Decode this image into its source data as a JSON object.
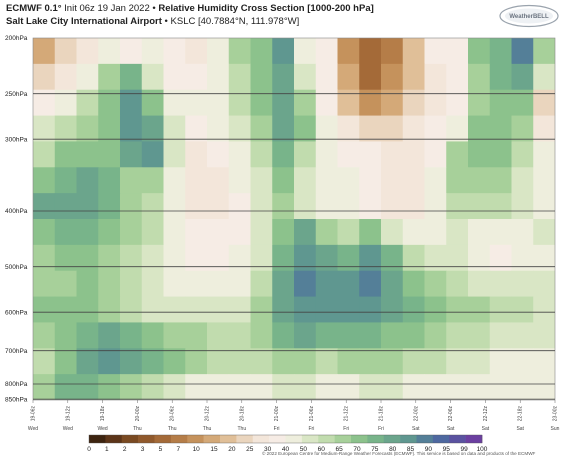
{
  "header": {
    "model": "ECMWF 0.1°",
    "init": "Init 06z 19 Jan 2022",
    "separator": "•",
    "product": "Relative Humidity Cross Section [1000-200 hPa]",
    "location": "Salt Lake City International Airport",
    "station": "KSLC [40.7884°N, 111.978°W]"
  },
  "logo": {
    "text": "WeatherBELL"
  },
  "colors": {
    "dry_dark": "#7a4a22",
    "mid": "#f5ebe2",
    "moist": "#6fa58a",
    "saturated": "#6b3fa0"
  },
  "chart_data": {
    "type": "heatmap",
    "title": "Relative Humidity Cross Section [1000-200 hPa]",
    "y_axis": {
      "levels_hPa": [
        200,
        250,
        300,
        400,
        500,
        600,
        700,
        800,
        850
      ],
      "tick_labels": [
        "200hPa",
        "250hPa",
        "300hPa",
        "400hPa",
        "500hPa",
        "600hPa",
        "700hPa",
        "800hPa",
        "850hPa"
      ],
      "scale": "log-pressure"
    },
    "x_axis": {
      "times": [
        "19-06z",
        "19-12z",
        "19-18z",
        "20-00z",
        "20-06z",
        "20-12z",
        "20-18z",
        "21-00z",
        "21-06z",
        "21-12z",
        "21-18z",
        "22-00z",
        "22-06z",
        "22-12z",
        "22-18z",
        "23-00z"
      ],
      "day_labels": [
        "Wed",
        "Wed",
        "Wed",
        "Thu",
        "Thu",
        "Thu",
        "Thu",
        "Fri",
        "Fri",
        "Fri",
        "Fri",
        "Sat",
        "Sat",
        "Sat",
        "Sat",
        "Sun"
      ]
    },
    "colorbar": {
      "ticks": [
        0,
        1,
        2,
        3,
        5,
        7,
        10,
        15,
        20,
        25,
        30,
        40,
        50,
        60,
        65,
        70,
        75,
        80,
        85,
        90,
        95,
        99,
        100
      ],
      "colors": [
        "#3d2410",
        "#5c3519",
        "#7a4a22",
        "#90592c",
        "#a46a38",
        "#b57d48",
        "#c5925c",
        "#d4a978",
        "#e0bf98",
        "#ead5be",
        "#f3e6da",
        "#f6ece5",
        "#eeeedd",
        "#d9e6c5",
        "#c1dcae",
        "#a7d09a",
        "#8cc28c",
        "#78b48a",
        "#6ba58c",
        "#5f9790",
        "#547f98",
        "#4e68a0",
        "#5a52a0",
        "#6b3fa0"
      ]
    },
    "rh_grid": [
      [
        15,
        25,
        35,
        55,
        45,
        55,
        40,
        30,
        50,
        70,
        75,
        90,
        55,
        45,
        10,
        5,
        8,
        20,
        40,
        45,
        75,
        80,
        95,
        70
      ],
      [
        25,
        35,
        50,
        70,
        80,
        60,
        45,
        40,
        55,
        65,
        75,
        85,
        60,
        40,
        15,
        5,
        10,
        20,
        30,
        40,
        70,
        80,
        85,
        60
      ],
      [
        45,
        55,
        65,
        75,
        92,
        75,
        55,
        50,
        55,
        65,
        75,
        85,
        70,
        45,
        20,
        10,
        15,
        25,
        35,
        45,
        70,
        78,
        75,
        25
      ],
      [
        60,
        65,
        70,
        75,
        90,
        85,
        60,
        45,
        50,
        60,
        70,
        85,
        75,
        50,
        35,
        25,
        25,
        30,
        40,
        55,
        75,
        75,
        70,
        35
      ],
      [
        65,
        75,
        75,
        75,
        85,
        90,
        60,
        30,
        40,
        55,
        65,
        80,
        65,
        50,
        45,
        40,
        30,
        30,
        45,
        70,
        75,
        75,
        65,
        50
      ],
      [
        75,
        80,
        85,
        80,
        70,
        70,
        55,
        30,
        35,
        50,
        60,
        75,
        60,
        50,
        50,
        45,
        30,
        30,
        50,
        70,
        70,
        70,
        60,
        50
      ],
      [
        85,
        85,
        85,
        80,
        70,
        65,
        55,
        35,
        35,
        45,
        60,
        70,
        60,
        50,
        50,
        45,
        35,
        30,
        50,
        65,
        65,
        65,
        60,
        55
      ],
      [
        75,
        80,
        80,
        75,
        70,
        65,
        55,
        40,
        40,
        45,
        60,
        75,
        85,
        70,
        65,
        75,
        60,
        50,
        55,
        60,
        55,
        55,
        55,
        60
      ],
      [
        70,
        75,
        75,
        70,
        65,
        60,
        50,
        45,
        45,
        50,
        60,
        80,
        90,
        85,
        80,
        90,
        80,
        65,
        60,
        60,
        55,
        40,
        50,
        55
      ],
      [
        70,
        70,
        75,
        70,
        65,
        60,
        55,
        50,
        50,
        55,
        65,
        85,
        95,
        92,
        90,
        95,
        85,
        75,
        70,
        65,
        60,
        60,
        60,
        60
      ],
      [
        75,
        75,
        75,
        70,
        65,
        60,
        60,
        60,
        60,
        60,
        70,
        85,
        90,
        92,
        92,
        90,
        85,
        80,
        75,
        70,
        70,
        65,
        65,
        60
      ],
      [
        70,
        75,
        80,
        85,
        80,
        75,
        70,
        70,
        65,
        65,
        70,
        80,
        85,
        80,
        80,
        80,
        75,
        75,
        70,
        65,
        65,
        60,
        60,
        60
      ],
      [
        65,
        75,
        85,
        90,
        85,
        80,
        75,
        70,
        65,
        65,
        65,
        70,
        70,
        65,
        70,
        70,
        70,
        65,
        65,
        60,
        60,
        55,
        55,
        55
      ],
      [
        70,
        80,
        80,
        75,
        70,
        65,
        60,
        55,
        55,
        55,
        55,
        60,
        60,
        55,
        55,
        60,
        60,
        55,
        55,
        50,
        50,
        50,
        50,
        50
      ]
    ]
  },
  "copyright": "© 2022 European Centre for Medium-Range Weather Forecasts (ECMWF). This service is based on data and products of the ECMWF"
}
